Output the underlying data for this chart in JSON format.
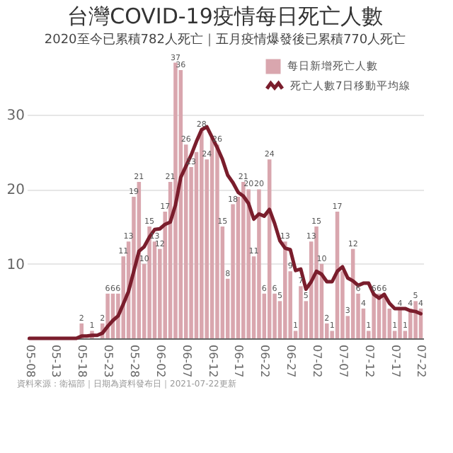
{
  "chart_data": {
    "type": "bar",
    "title": "台灣COVID-19疫情每日死亡人數",
    "subtitle": "2020至今已累積782人死亡｜五月疫情爆發後已累積770人死亡",
    "categories": [
      "05-08",
      null,
      null,
      null,
      null,
      "05-13",
      null,
      null,
      null,
      null,
      "05-18",
      null,
      null,
      null,
      null,
      "05-23",
      null,
      null,
      null,
      null,
      "05-28",
      null,
      null,
      null,
      null,
      "06-02",
      null,
      null,
      null,
      null,
      "06-07",
      null,
      null,
      null,
      null,
      "06-12",
      null,
      null,
      null,
      null,
      "06-17",
      null,
      null,
      null,
      null,
      "06-22",
      null,
      null,
      null,
      null,
      "06-27",
      null,
      null,
      null,
      null,
      "07-02",
      null,
      null,
      null,
      null,
      "07-07",
      null,
      null,
      null,
      null,
      "07-12",
      null,
      null,
      null,
      null,
      "07-17",
      null,
      null,
      null,
      null,
      "07-22"
    ],
    "series": [
      {
        "name": "每日新增死亡人數",
        "color": "#d9a6ae",
        "values": [
          0,
          0,
          0,
          0,
          0,
          0,
          0,
          0,
          0,
          0,
          2,
          0,
          1,
          0,
          2,
          6,
          6,
          6,
          11,
          13,
          19,
          21,
          10,
          15,
          13,
          12,
          17,
          21,
          37,
          36,
          26,
          23,
          25,
          28,
          24,
          27,
          26,
          15,
          8,
          18,
          19,
          21,
          20,
          11,
          20,
          6,
          24,
          6,
          5,
          13,
          9,
          1,
          7,
          5,
          13,
          15,
          10,
          2,
          1,
          17,
          9,
          3,
          12,
          6,
          4,
          1,
          6,
          6,
          6,
          4,
          1,
          4,
          1,
          4,
          5,
          4
        ],
        "value_labels": [
          null,
          null,
          null,
          null,
          null,
          null,
          null,
          null,
          null,
          null,
          "2",
          null,
          "1",
          null,
          "2",
          "6",
          "6",
          "6",
          "11",
          "13",
          "19",
          "21",
          "10",
          "15",
          "13",
          "12",
          "17",
          "21",
          "37",
          "36",
          "26",
          "23",
          null,
          "28",
          "24",
          null,
          "26",
          "15",
          "8",
          "18",
          null,
          "21",
          "20",
          "11",
          "20",
          "6",
          "24",
          "6",
          "5",
          "13",
          "9",
          "1",
          "7",
          "5",
          "13",
          "15",
          "10",
          "2",
          "1",
          "17",
          null,
          "3",
          "12",
          "6",
          "4",
          "1",
          "6",
          "6",
          "6",
          null,
          "1",
          "4",
          "1",
          "4",
          "5",
          "4"
        ]
      },
      {
        "type": "line",
        "name": "死亡人數7日移動平均線",
        "color": "#7a1d2c",
        "values": [
          0,
          0,
          0,
          0,
          0,
          0,
          0,
          0,
          0,
          0,
          0.3,
          0.3,
          0.4,
          0.4,
          0.7,
          1.6,
          2.4,
          3.0,
          4.6,
          6.3,
          9.0,
          11.7,
          12.3,
          13.6,
          14.6,
          14.7,
          15.3,
          15.6,
          17.9,
          21.6,
          23.1,
          24.6,
          26.4,
          28.0,
          28.4,
          27.0,
          25.6,
          24.0,
          21.9,
          20.9,
          19.6,
          19.1,
          18.1,
          16.0,
          16.7,
          16.4,
          17.3,
          15.4,
          13.1,
          12.1,
          11.9,
          9.1,
          9.3,
          6.6,
          7.6,
          9.0,
          8.6,
          7.6,
          7.6,
          9.0,
          9.6,
          8.1,
          7.7,
          7.1,
          7.4,
          7.4,
          5.9,
          5.4,
          5.9,
          4.7,
          4.0,
          4.0,
          4.0,
          3.7,
          3.6,
          3.3
        ]
      }
    ],
    "ylim": [
      0,
      38
    ],
    "yticks": [
      10,
      20,
      30
    ],
    "grid": "y",
    "legend": "top right",
    "annotations": [
      "資料來源：衛福部｜日期為資料發布日｜2021-07-22更新"
    ]
  }
}
